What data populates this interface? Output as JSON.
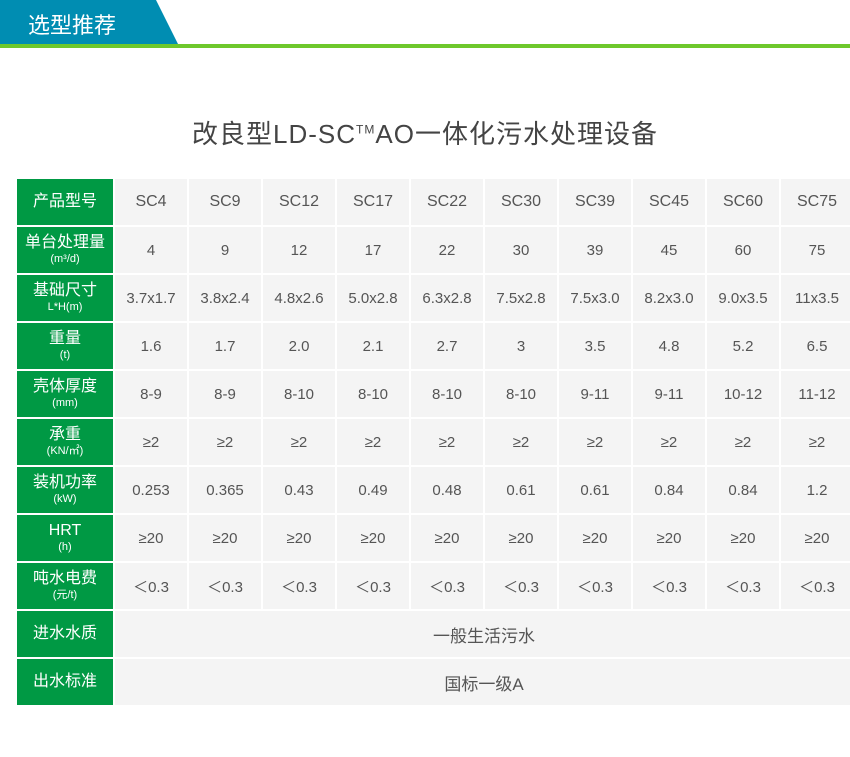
{
  "colors": {
    "tab_bg": "#008db2",
    "line": "#6ec82c",
    "header_cell": "#009944",
    "data_cell": "#f4f4f4",
    "text": "#555555",
    "title_text": "#444444"
  },
  "header": {
    "tab_label": "选型推荐"
  },
  "table": {
    "title_pre": "改良型LD-SC",
    "title_tm": "TM",
    "title_post": "AO一体化污水处理设备",
    "labels": {
      "model": "产品型号",
      "capacity": "单台处理量",
      "capacity_unit": "(m³/d)",
      "size": "基础尺寸",
      "size_unit": "L*H(m)",
      "weight": "重量",
      "weight_unit": "(t)",
      "shell": "壳体厚度",
      "shell_unit": "(mm)",
      "load": "承重",
      "load_unit": "(KN/㎡)",
      "power": "装机功率",
      "power_unit": "(kW)",
      "hrt": "HRT",
      "hrt_unit": "(h)",
      "elec": "吨水电费",
      "elec_unit": "(元/t)",
      "inlet": "进水水质",
      "outlet": "出水标准"
    },
    "models": [
      "SC4",
      "SC9",
      "SC12",
      "SC17",
      "SC22",
      "SC30",
      "SC39",
      "SC45",
      "SC60",
      "SC75"
    ],
    "capacity": [
      "4",
      "9",
      "12",
      "17",
      "22",
      "30",
      "39",
      "45",
      "60",
      "75"
    ],
    "size": [
      "3.7x1.7",
      "3.8x2.4",
      "4.8x2.6",
      "5.0x2.8",
      "6.3x2.8",
      "7.5x2.8",
      "7.5x3.0",
      "8.2x3.0",
      "9.0x3.5",
      "11x3.5"
    ],
    "weight": [
      "1.6",
      "1.7",
      "2.0",
      "2.1",
      "2.7",
      "3",
      "3.5",
      "4.8",
      "5.2",
      "6.5"
    ],
    "shell": [
      "8-9",
      "8-9",
      "8-10",
      "8-10",
      "8-10",
      "8-10",
      "9-11",
      "9-11",
      "10-12",
      "11-12"
    ],
    "load": [
      "≥2",
      "≥2",
      "≥2",
      "≥2",
      "≥2",
      "≥2",
      "≥2",
      "≥2",
      "≥2",
      "≥2"
    ],
    "power": [
      "0.253",
      "0.365",
      "0.43",
      "0.49",
      "0.48",
      "0.61",
      "0.61",
      "0.84",
      "0.84",
      "1.2"
    ],
    "hrt": [
      "≥20",
      "≥20",
      "≥20",
      "≥20",
      "≥20",
      "≥20",
      "≥20",
      "≥20",
      "≥20",
      "≥20"
    ],
    "elec": [
      "＜0.3",
      "＜0.3",
      "＜0.3",
      "＜0.3",
      "＜0.3",
      "＜0.3",
      "＜0.3",
      "＜0.3",
      "＜0.3",
      "＜0.3"
    ],
    "inlet_value": "一般生活污水",
    "outlet_value": "国标一级A"
  }
}
